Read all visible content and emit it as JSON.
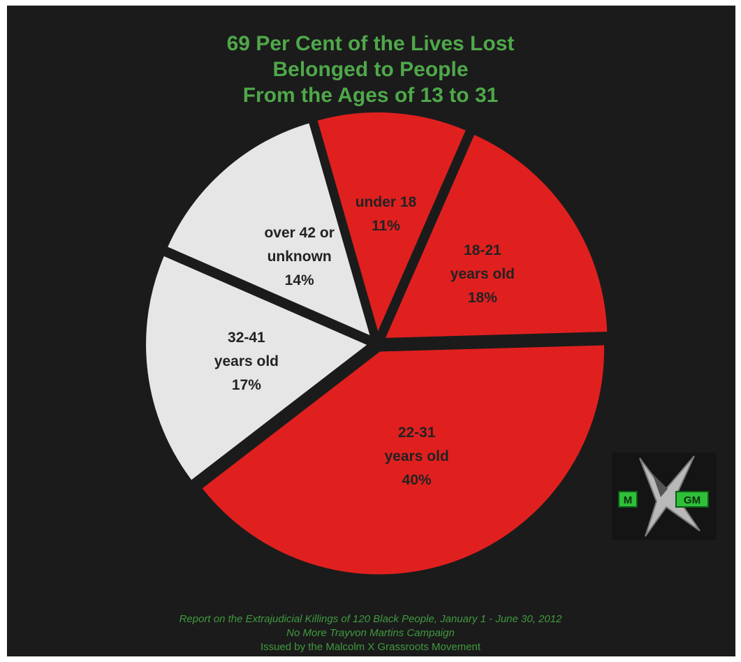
{
  "title": {
    "line1": "69 Per Cent of the Lives Lost",
    "line2": "Belonged to People",
    "line3": "From the Ages of 13 to 31"
  },
  "colors": {
    "background": "#1b1b1b",
    "title": "#4fa84a",
    "red": "#e0201f",
    "light": "#e6e6e6",
    "label": "#222222"
  },
  "chart_data": {
    "type": "pie",
    "slices": [
      {
        "label": "under 18",
        "lines": [
          "under 18",
          "11%"
        ],
        "value": 11,
        "color": "#e0201f",
        "text_color": "#222222"
      },
      {
        "label": "18-21 years old",
        "lines": [
          "18-21",
          "years old",
          "18%"
        ],
        "value": 18,
        "color": "#e0201f",
        "text_color": "#222222"
      },
      {
        "label": "22-31 years old",
        "lines": [
          "22-31",
          "years old",
          "40%"
        ],
        "value": 40,
        "color": "#e0201f",
        "text_color": "#222222"
      },
      {
        "label": "32-41 years old",
        "lines": [
          "32-41",
          "years old",
          "17%"
        ],
        "value": 17,
        "color": "#e6e6e6",
        "text_color": "#222222"
      },
      {
        "label": "over 42 or unknown",
        "lines": [
          "over 42 or",
          "unknown",
          "14%"
        ],
        "value": 14,
        "color": "#e6e6e6",
        "text_color": "#222222"
      }
    ]
  },
  "footer": {
    "line1": "Report on the Extrajudicial Killings of 120 Black People,  January 1 - June 30, 2012",
    "line2": "No More Trayvon Martins Campaign",
    "line3": "Issued by the Malcolm X Grassroots Movement"
  },
  "logo": {
    "icon": "mxgm-logo-icon",
    "left_text": "M",
    "right_text": "GM"
  }
}
